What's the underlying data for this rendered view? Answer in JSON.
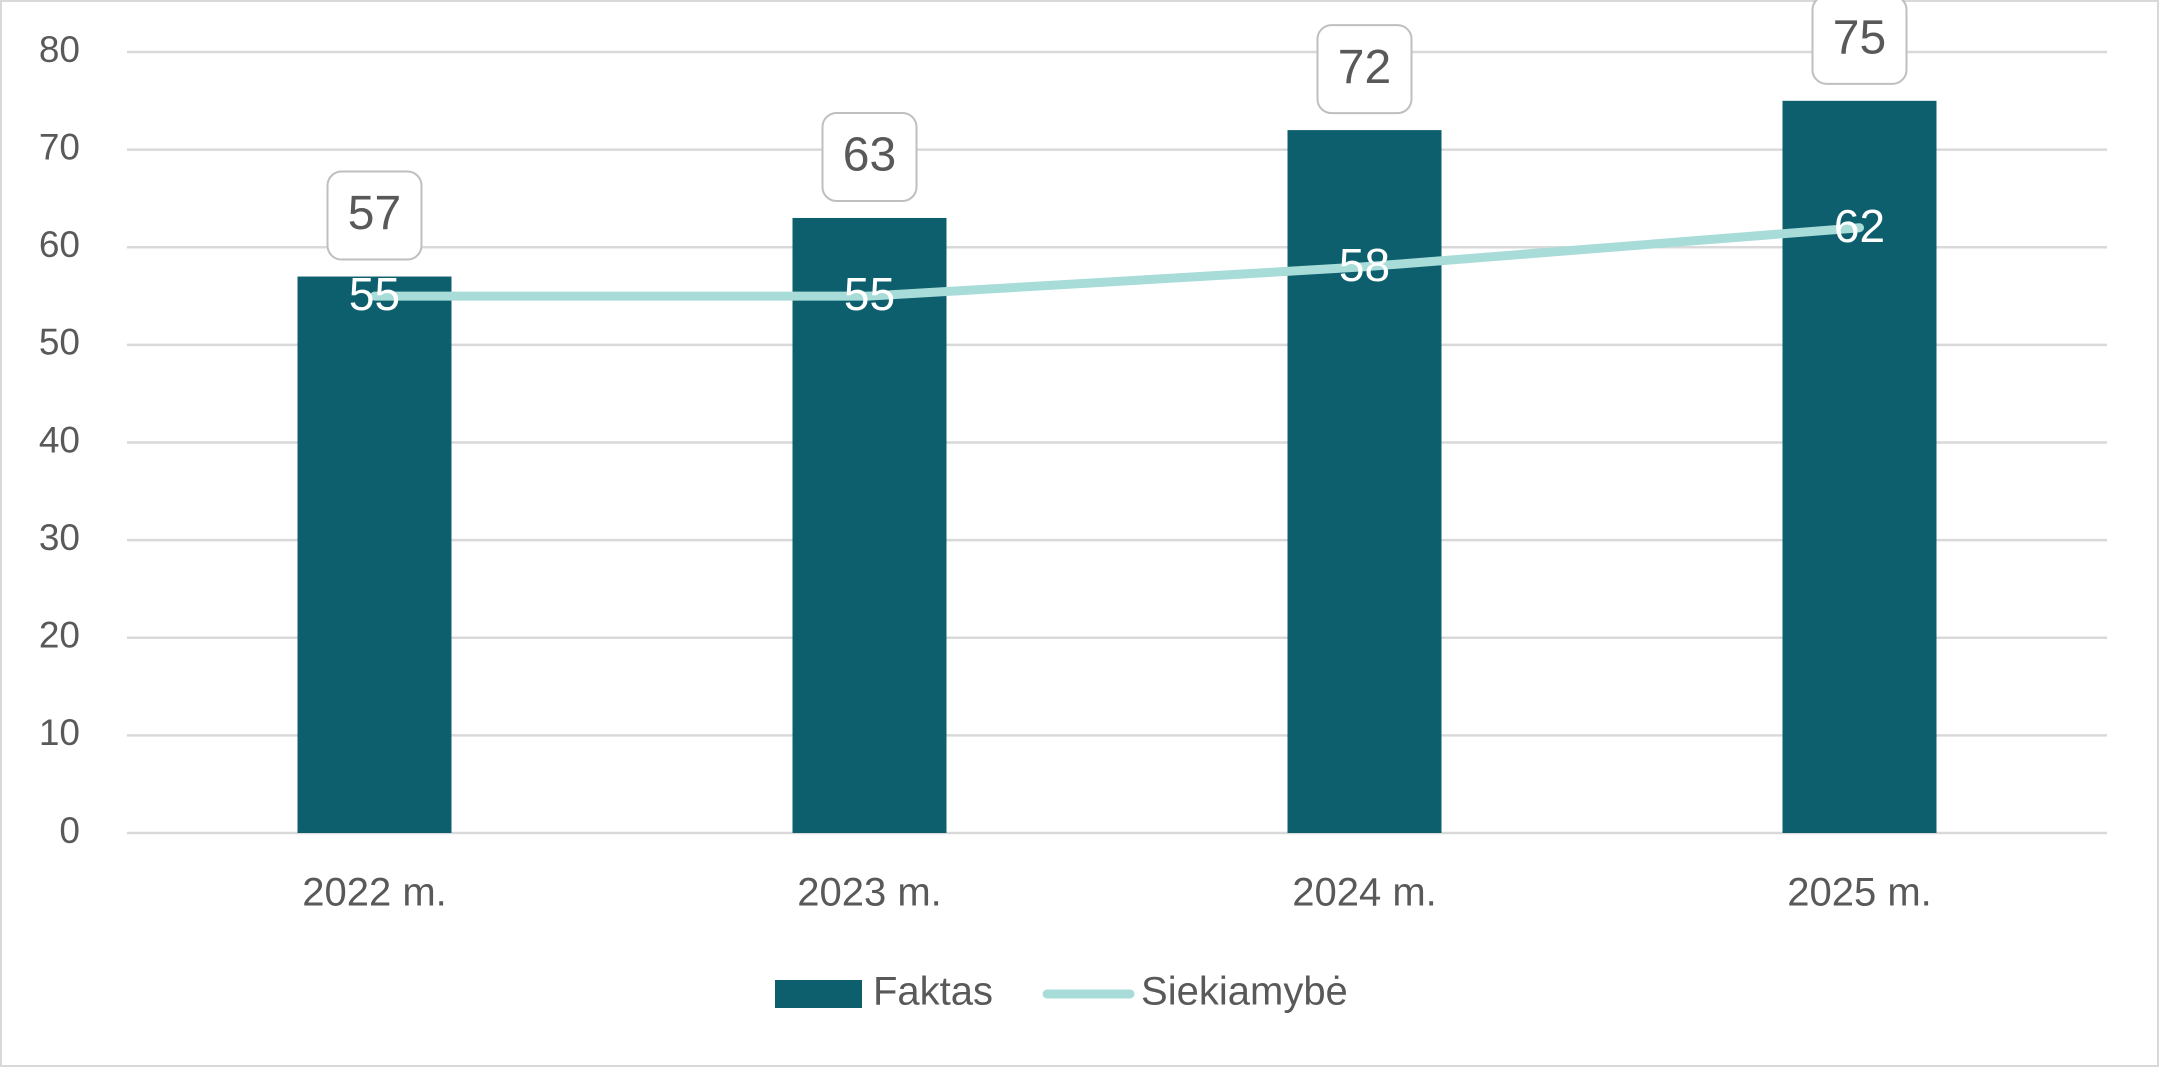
{
  "chart_data": {
    "type": "bar",
    "categories": [
      "2022 m.",
      "2023 m.",
      "2024 m.",
      "2025 m."
    ],
    "series": [
      {
        "name": "Faktas",
        "type": "bar",
        "color": "#0e5f6e",
        "values": [
          57,
          63,
          72,
          75
        ]
      },
      {
        "name": "Siekiamybė",
        "type": "line",
        "color": "#a8dcd9",
        "values": [
          55,
          55,
          58,
          62
        ]
      }
    ],
    "ylim": [
      0,
      80
    ],
    "yticks": [
      0,
      10,
      20,
      30,
      40,
      50,
      60,
      70,
      80
    ],
    "grid": true,
    "legend": "bottom"
  }
}
